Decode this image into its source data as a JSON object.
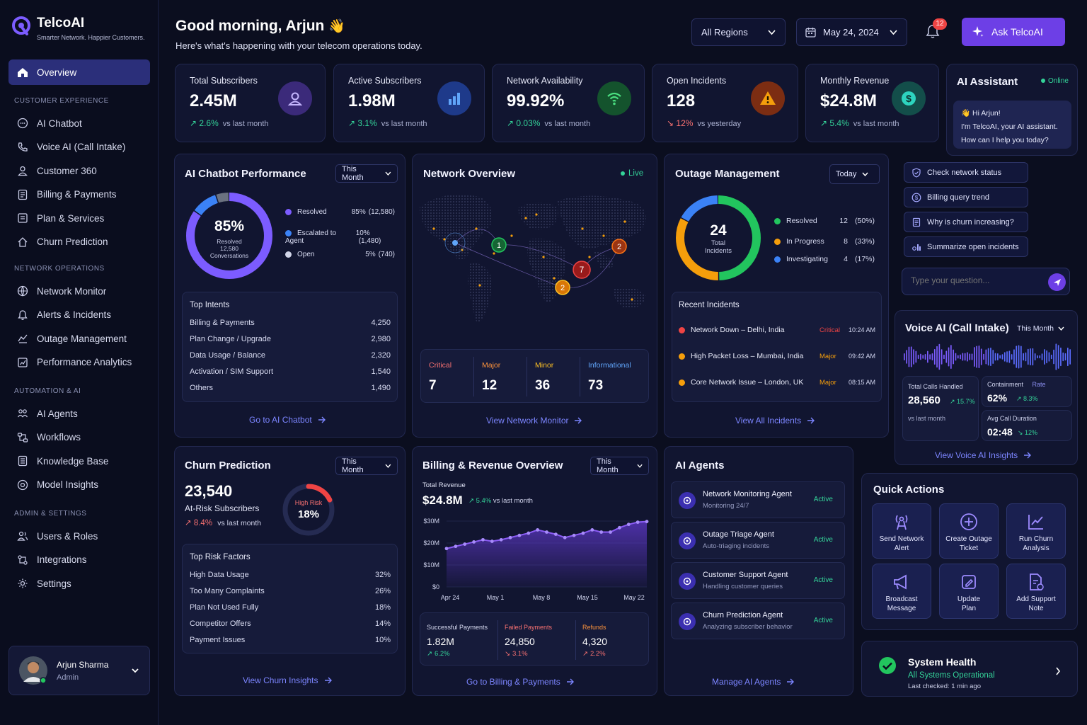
{
  "brand": {
    "name": "TelcoAI",
    "tagline": "Smarter Network. Happier Customers."
  },
  "sidebar": {
    "overview": "Overview",
    "sections": [
      {
        "label": "CUSTOMER EXPERIENCE",
        "items": [
          "AI Chatbot",
          "Voice AI (Call Intake)",
          "Customer 360",
          "Billing & Payments",
          "Plan & Services",
          "Churn Prediction"
        ]
      },
      {
        "label": "NETWORK OPERATIONS",
        "items": [
          "Network Monitor",
          "Alerts & Incidents",
          "Outage Management",
          "Performance Analytics"
        ]
      },
      {
        "label": "AUTOMATION & AI",
        "items": [
          "AI Agents",
          "Workflows",
          "Knowledge Base",
          "Model Insights"
        ]
      },
      {
        "label": "ADMIN & SETTINGS",
        "items": [
          "Users & Roles",
          "Integrations",
          "Settings"
        ]
      }
    ],
    "user": {
      "name": "Arjun Sharma",
      "role": "Admin"
    }
  },
  "header": {
    "greeting": "Good morning, Arjun",
    "emoji": "👋",
    "subtitle": "Here's what's happening with your telecom operations today.",
    "region": "All Regions",
    "date": "May 24, 2024",
    "notifications": "12",
    "ask": "Ask TelcoAI"
  },
  "kpis": [
    {
      "label": "Total Subscribers",
      "value": "2.45M",
      "change": "2.6%",
      "note": "vs last month",
      "dir": "up"
    },
    {
      "label": "Active Subscribers",
      "value": "1.98M",
      "change": "3.1%",
      "note": "vs last month",
      "dir": "up"
    },
    {
      "label": "Network Availability",
      "value": "99.92%",
      "change": "0.03%",
      "note": "vs last month",
      "dir": "up"
    },
    {
      "label": "Open Incidents",
      "value": "128",
      "change": "12%",
      "note": "vs yesterday",
      "dir": "down"
    },
    {
      "label": "Monthly Revenue",
      "value": "$24.8M",
      "change": "5.4%",
      "note": "vs last month",
      "dir": "up"
    }
  ],
  "chatbot": {
    "title": "AI Chatbot Performance",
    "period": "This Month",
    "pct": "85%",
    "center_l1": "Resolved",
    "center_l2": "12,580",
    "center_l3": "Conversations",
    "legend": [
      {
        "label": "Resolved",
        "pct": "85%",
        "count": "(12,580)",
        "color": "#7c5cff",
        "share": 0.85
      },
      {
        "label": "Escalated to Agent",
        "pct": "10%",
        "count": "(1,480)",
        "color": "#3b82f6",
        "share": 0.1
      },
      {
        "label": "Open",
        "pct": "5%",
        "count": "(740)",
        "color": "#d1d5e8",
        "share": 0.05
      }
    ],
    "intents_title": "Top Intents",
    "intents": [
      {
        "label": "Billing & Payments",
        "value": "4,250"
      },
      {
        "label": "Plan Change / Upgrade",
        "value": "2,980"
      },
      {
        "label": "Data Usage / Balance",
        "value": "2,320"
      },
      {
        "label": "Activation / SIM Support",
        "value": "1,540"
      },
      {
        "label": "Others",
        "value": "1,490"
      }
    ],
    "link": "Go to AI Chatbot"
  },
  "network": {
    "title": "Network Overview",
    "live": "Live",
    "markers": [
      "1",
      "2",
      "7",
      "2"
    ],
    "severity": [
      {
        "label": "Critical",
        "value": "7",
        "color": "#f87171"
      },
      {
        "label": "Major",
        "value": "12",
        "color": "#fb923c"
      },
      {
        "label": "Minor",
        "value": "36",
        "color": "#fbbf24"
      },
      {
        "label": "Informational",
        "value": "73",
        "color": "#60a5fa"
      }
    ],
    "link": "View Network Monitor"
  },
  "outage": {
    "title": "Outage Management",
    "period": "Today",
    "total": "24",
    "total_l1": "Total",
    "total_l2": "Incidents",
    "legend": [
      {
        "label": "Resolved",
        "value": "12",
        "pct": "(50%)",
        "color": "#22c55e",
        "share": 0.5
      },
      {
        "label": "In Progress",
        "value": "8",
        "pct": "(33%)",
        "color": "#f59e0b",
        "share": 0.33
      },
      {
        "label": "Investigating",
        "value": "4",
        "pct": "(17%)",
        "color": "#3b82f6",
        "share": 0.17
      }
    ],
    "recent_title": "Recent Incidents",
    "incidents": [
      {
        "title": "Network Down",
        "loc": " – Delhi, India",
        "sev": "Critical",
        "time": "10:24 AM",
        "color": "#ef4444"
      },
      {
        "title": "High Packet Loss",
        "loc": " – Mumbai, India",
        "sev": "Major",
        "time": "09:42 AM",
        "color": "#f59e0b"
      },
      {
        "title": "Core Network Issue",
        "loc": " – London, UK",
        "sev": "Major",
        "time": "08:15 AM",
        "color": "#f59e0b"
      }
    ],
    "link": "View All Incidents"
  },
  "assistant": {
    "title": "AI Assistant",
    "status": "Online",
    "greeting_l1": "👋 Hi Arjun!",
    "greeting_l2": "I'm TelcoAI, your AI assistant.",
    "greeting_l3": "How can I help you today?",
    "chips": [
      "Check network status",
      "Billing query trend",
      "Why is churn increasing?",
      "Summarize open incidents"
    ],
    "placeholder": "Type your question..."
  },
  "voice": {
    "title": "Voice AI (Call Intake)",
    "period": "This Month",
    "calls_label": "Total Calls Handled",
    "calls": "28,560",
    "calls_change": "15.7%",
    "calls_note": "vs last month",
    "contain_label": "Containment",
    "contain_rate": "Rate",
    "contain": "62%",
    "contain_change": "8.3%",
    "dur_label": "Avg Call Duration",
    "dur": "02:48",
    "dur_change": "12%",
    "link": "View Voice AI Insights"
  },
  "churn": {
    "title": "Churn Prediction",
    "period": "This Month",
    "value": "23,540",
    "label": "At-Risk Subscribers",
    "change": "8.4%",
    "note": "vs last month",
    "gauge_label": "High Risk",
    "gauge_value": "18%",
    "gauge_share": 0.18,
    "factors_title": "Top Risk Factors",
    "factors": [
      {
        "label": "High Data Usage",
        "value": "32%"
      },
      {
        "label": "Too Many Complaints",
        "value": "26%"
      },
      {
        "label": "Plan Not Used Fully",
        "value": "18%"
      },
      {
        "label": "Competitor Offers",
        "value": "14%"
      },
      {
        "label": "Payment Issues",
        "value": "10%"
      }
    ],
    "link": "View Churn Insights"
  },
  "billing": {
    "title": "Billing & Revenue Overview",
    "period": "This Month",
    "total_label": "Total Revenue",
    "total": "$24.8M",
    "change": "5.4%",
    "note": "vs last month",
    "stats": [
      {
        "label": "Successful Payments",
        "value": "1.82M",
        "change": "6.2%",
        "lcolor": "#d9dcf2",
        "ccolor": "#34d399",
        "arrow": "↗"
      },
      {
        "label": "Failed Payments",
        "value": "24,850",
        "change": "3.1%",
        "lcolor": "#f87171",
        "ccolor": "#f87171",
        "arrow": "↘"
      },
      {
        "label": "Refunds",
        "value": "4,320",
        "change": "2.2%",
        "lcolor": "#fb923c",
        "ccolor": "#f87171",
        "arrow": "↗"
      }
    ],
    "link": "Go to Billing & Payments"
  },
  "chart_data": {
    "type": "area",
    "title": "",
    "xlabel": "",
    "ylabel": "",
    "x_ticks": [
      "Apr 24",
      "May 1",
      "May 8",
      "May 15",
      "May 22"
    ],
    "y_ticks": [
      "$0",
      "$10M",
      "$20M",
      "$30M"
    ],
    "ylim": [
      0,
      30
    ],
    "x": [
      "Apr 24",
      "Apr 26",
      "Apr 27",
      "Apr 28",
      "Apr 30",
      "May 1",
      "May 3",
      "May 4",
      "May 5",
      "May 7",
      "May 8",
      "May 10",
      "May 11",
      "May 12",
      "May 14",
      "May 15",
      "May 17",
      "May 18",
      "May 19",
      "May 21",
      "May 22",
      "May 23",
      "May 24"
    ],
    "values": [
      17.5,
      18.5,
      19.5,
      20.5,
      21.5,
      20.8,
      21.5,
      22.5,
      23.5,
      24.5,
      26.0,
      25.0,
      24.0,
      22.5,
      23.5,
      24.5,
      26.0,
      25.0,
      25.0,
      27.0,
      28.5,
      29.5,
      29.8
    ]
  },
  "agents": {
    "title": "AI Agents",
    "items": [
      {
        "name": "Network Monitoring Agent",
        "desc": "Monitoring 24/7",
        "status": "Active"
      },
      {
        "name": "Outage Triage Agent",
        "desc": "Auto-triaging incidents",
        "status": "Active"
      },
      {
        "name": "Customer Support Agent",
        "desc": "Handling customer queries",
        "status": "Active"
      },
      {
        "name": "Churn Prediction Agent",
        "desc": "Analyzing subscriber behavior",
        "status": "Active"
      }
    ],
    "link": "Manage AI Agents"
  },
  "quick": {
    "title": "Quick Actions",
    "items": [
      {
        "l1": "Send Network",
        "l2": "Alert"
      },
      {
        "l1": "Create Outage",
        "l2": "Ticket"
      },
      {
        "l1": "Run Churn",
        "l2": "Analysis"
      },
      {
        "l1": "Broadcast",
        "l2": "Message"
      },
      {
        "l1": "Update",
        "l2": "Plan"
      },
      {
        "l1": "Add Support",
        "l2": "Note"
      }
    ]
  },
  "health": {
    "title": "System Health",
    "status": "All Systems Operational",
    "checked": "Last checked: 1 min ago"
  },
  "colors": {
    "accent": "#6d4aff",
    "up": "#34d399",
    "down": "#f87171",
    "bg": "#0b0e1f"
  }
}
